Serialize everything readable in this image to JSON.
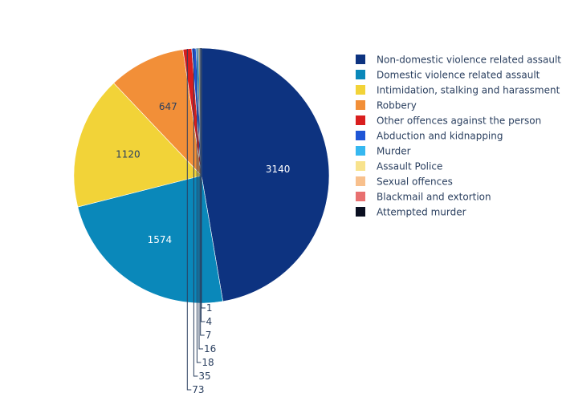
{
  "chart_data": {
    "type": "pie",
    "legend_position": "right",
    "sort": "descending",
    "direction": "clockwise",
    "slices": [
      {
        "label": "Non-domestic violence related assault",
        "value": 3140,
        "color": "#0d3380"
      },
      {
        "label": "Domestic violence related assault",
        "value": 1574,
        "color": "#0a88ba"
      },
      {
        "label": "Intimidation, stalking and harassment",
        "value": 1120,
        "color": "#f2d338"
      },
      {
        "label": "Robbery",
        "value": 647,
        "color": "#f28f38"
      },
      {
        "label": "Other offences against the person",
        "value": 73,
        "color": "#d91e1e"
      },
      {
        "label": "Abduction and kidnapping",
        "value": 35,
        "color": "#1f56d6"
      },
      {
        "label": "Murder",
        "value": 18,
        "color": "#36b8f0"
      },
      {
        "label": "Assault Police",
        "value": 16,
        "color": "#f8e38d"
      },
      {
        "label": "Sexual offences",
        "value": 7,
        "color": "#f8c08d"
      },
      {
        "label": "Blackmail and extortion",
        "value": 4,
        "color": "#e87070"
      },
      {
        "label": "Attempted murder",
        "value": 1,
        "color": "#0a0f20"
      }
    ]
  }
}
